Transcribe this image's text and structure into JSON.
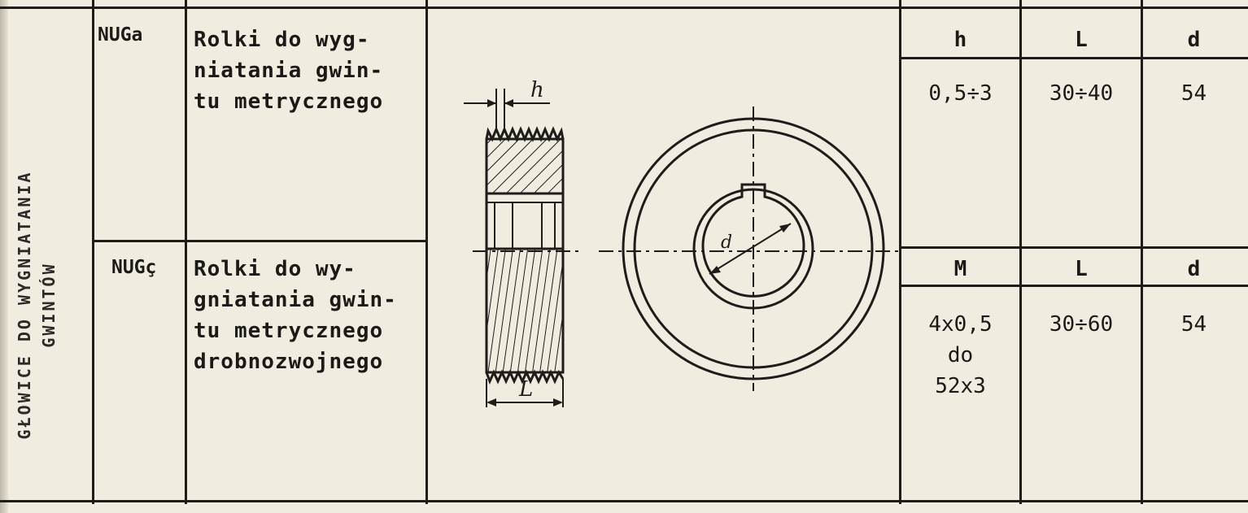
{
  "side_title": {
    "line1": "GŁOWICE DO WYGNIATANIA",
    "line2": "GWINTÓW"
  },
  "rows": [
    {
      "code": "NUGa",
      "description": "Rolki do wyg-\nniatania gwin-\ntu metrycznego",
      "headers": [
        "h",
        "L",
        "d"
      ],
      "values": [
        "0,5÷3",
        "30÷40",
        "54"
      ]
    },
    {
      "code": "NUGç",
      "description": "Rolki do wy-\ngniatania gwin-\ntu metrycznego\ndrobnozwojnego",
      "headers": [
        "M",
        "L",
        "d"
      ],
      "values": [
        "4x0,5\ndo\n52x3",
        "30÷60",
        "54"
      ]
    }
  ],
  "drawing": {
    "label_h": "h",
    "label_L": "L",
    "label_d": "d"
  }
}
